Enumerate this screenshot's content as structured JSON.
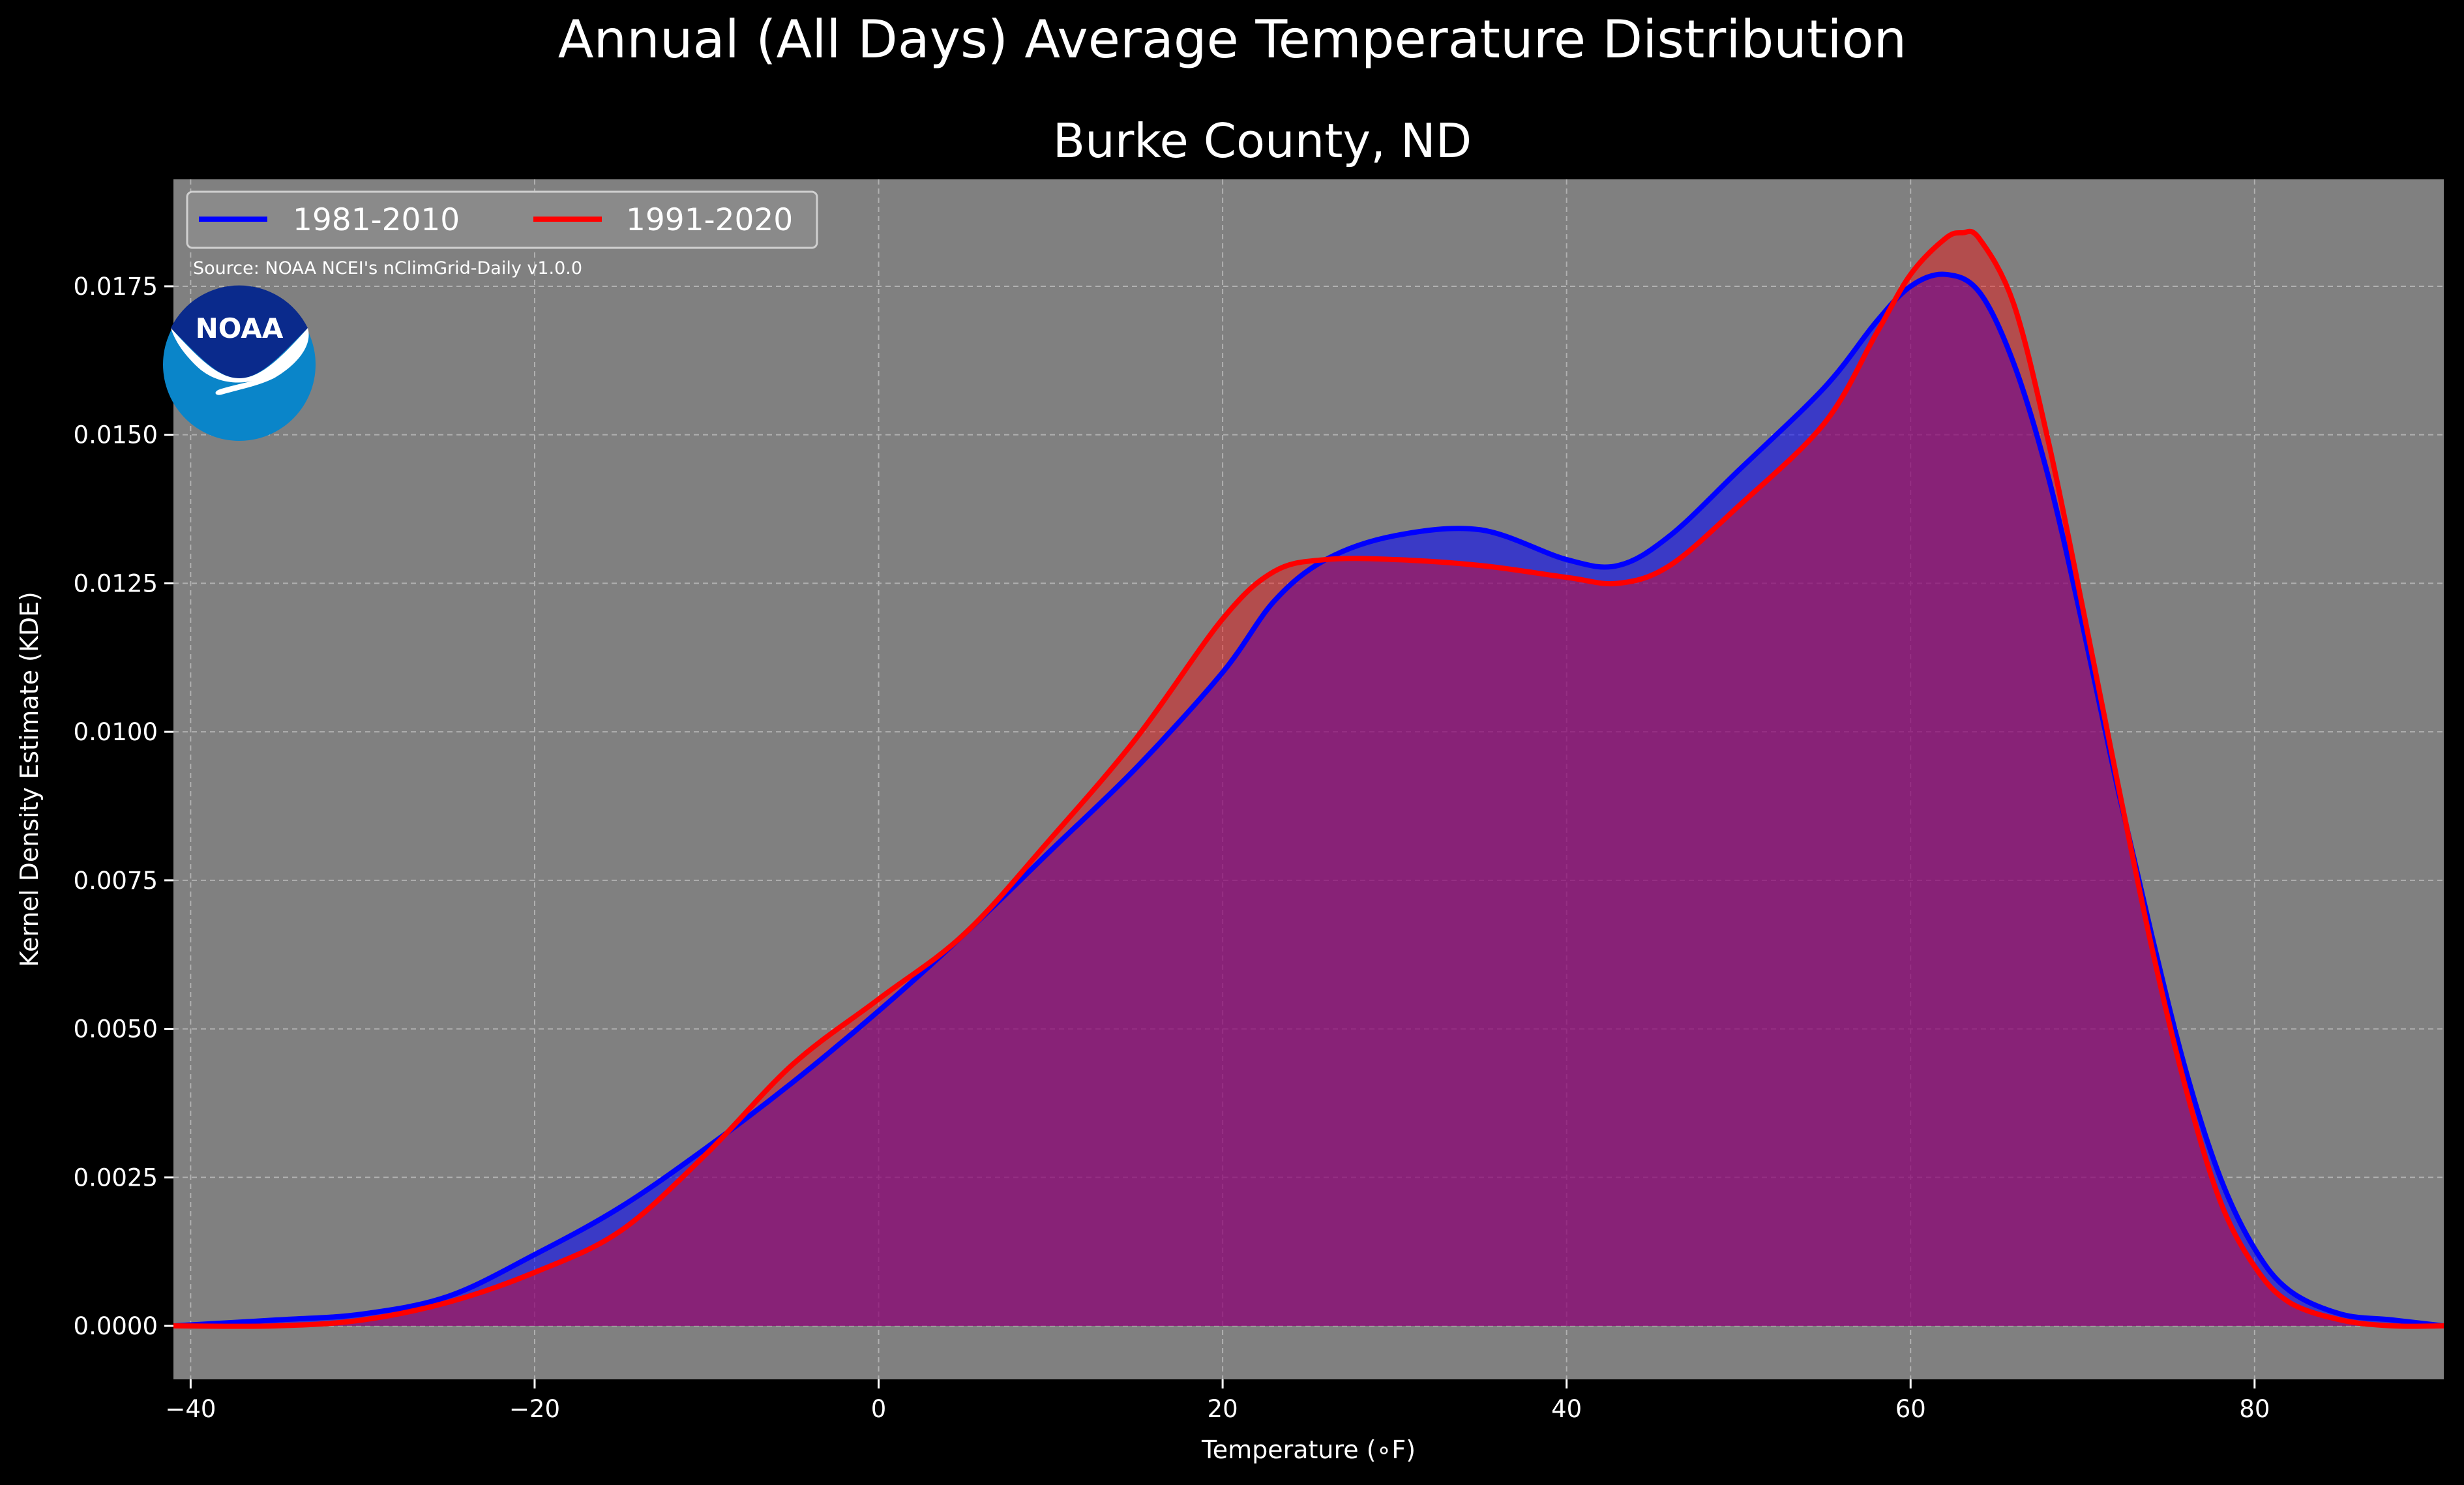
{
  "suptitle": "Annual (All Days) Average Temperature Distribution",
  "logo_text": "NOAA",
  "colors": {
    "background": "#000000",
    "plot_bg": "#808080",
    "series_1981": "#0000ff",
    "series_1991": "#ff0000",
    "overlap": "#9c1e5e",
    "logo_dark": "#0a2a8c",
    "logo_light": "#0a85c9"
  },
  "chart_data": {
    "type": "area",
    "title": "Burke County, ND",
    "xlabel": "Temperature ($^\\circ$F)",
    "xlabel_display": "Temperature (∘F)",
    "ylabel": "Kernel Density Estimate (KDE)",
    "source": "Source: NOAA NCEI's nClimGrid-Daily v1.0.0",
    "xlim": [
      -41,
      91
    ],
    "ylim": [
      -0.0009,
      0.0193
    ],
    "xticks": [
      -40,
      -20,
      0,
      20,
      40,
      60,
      80
    ],
    "xtick_labels": [
      "−40",
      "−20",
      "0",
      "20",
      "40",
      "60",
      "80"
    ],
    "yticks": [
      0,
      0.0025,
      0.005,
      0.0075,
      0.01,
      0.0125,
      0.015,
      0.0175
    ],
    "ytick_labels": [
      "0.0000",
      "0.0025",
      "0.0050",
      "0.0075",
      "0.0100",
      "0.0125",
      "0.0150",
      "0.0175"
    ],
    "grid": true,
    "legend": "top-left",
    "series": [
      {
        "name": "1981-2010",
        "color": "#0000ff",
        "x": [
          -41,
          -35,
          -30,
          -25,
          -20,
          -15,
          -10,
          -5,
          0,
          5,
          10,
          15,
          20,
          23,
          26,
          30,
          35,
          40,
          43,
          46,
          50,
          55,
          58,
          60,
          62,
          64,
          66,
          68,
          70,
          72,
          74,
          76,
          78,
          80,
          82,
          85,
          88,
          91
        ],
        "y": [
          0.0,
          0.0001,
          0.0002,
          0.0005,
          0.0012,
          0.002,
          0.003,
          0.0041,
          0.0053,
          0.0066,
          0.008,
          0.0094,
          0.011,
          0.0122,
          0.0129,
          0.0133,
          0.0134,
          0.0129,
          0.0128,
          0.0133,
          0.0144,
          0.0158,
          0.0169,
          0.0175,
          0.0177,
          0.0174,
          0.0162,
          0.0143,
          0.0118,
          0.0091,
          0.0066,
          0.0043,
          0.0025,
          0.0013,
          0.0006,
          0.0002,
          0.0001,
          0.0
        ]
      },
      {
        "name": "1991-2020",
        "color": "#ff0000",
        "x": [
          -41,
          -35,
          -30,
          -25,
          -20,
          -15,
          -10,
          -5,
          0,
          5,
          10,
          15,
          20,
          23,
          26,
          30,
          35,
          40,
          43,
          46,
          50,
          55,
          58,
          60,
          62,
          63,
          64,
          66,
          68,
          70,
          72,
          74,
          76,
          78,
          80,
          82,
          85,
          88,
          91
        ],
        "y": [
          0.0,
          0.0,
          0.0001,
          0.0004,
          0.0009,
          0.0016,
          0.0029,
          0.0044,
          0.0055,
          0.0066,
          0.0082,
          0.0099,
          0.0119,
          0.0127,
          0.0129,
          0.0129,
          0.0128,
          0.0126,
          0.0125,
          0.0128,
          0.0138,
          0.0152,
          0.0167,
          0.0177,
          0.0183,
          0.0184,
          0.0183,
          0.0172,
          0.0149,
          0.0121,
          0.0092,
          0.0064,
          0.004,
          0.0021,
          0.001,
          0.0004,
          0.0001,
          0.0,
          0.0
        ]
      }
    ]
  }
}
